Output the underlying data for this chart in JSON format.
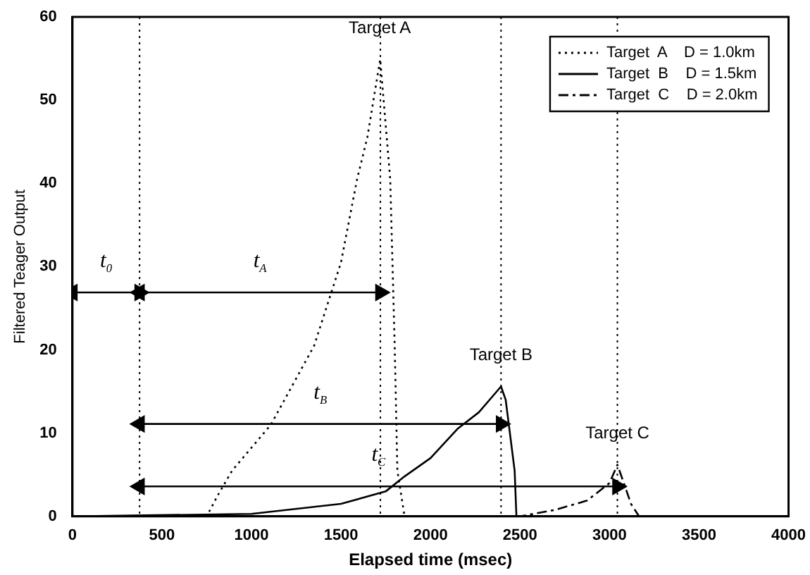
{
  "chart_data": {
    "type": "line",
    "xlabel": "Elapsed time (msec)",
    "ylabel": "Filtered Teager Output",
    "xlim": [
      0,
      4000
    ],
    "xticks": [
      0,
      500,
      1000,
      1500,
      2000,
      2500,
      3000,
      3500,
      4000
    ],
    "ylim": [
      0,
      60
    ],
    "yticks": [
      0,
      10,
      20,
      30,
      40,
      50,
      60
    ],
    "grid": false,
    "legend": "top right",
    "marker": "none",
    "series": [
      {
        "name": "Target  A    D = 1.0km",
        "color": "#000000",
        "line_style": "dotted",
        "x": [
          0,
          500,
          750,
          811,
          892,
          1108,
          1350,
          1500,
          1590,
          1647,
          1719,
          1775,
          1800,
          1815,
          1855,
          2000,
          4000
        ],
        "values": [
          0,
          0,
          0,
          2.5,
          5.5,
          11,
          20.5,
          30.5,
          40.5,
          45.5,
          54.9,
          40.5,
          20.5,
          5.5,
          0,
          0,
          0
        ]
      },
      {
        "name": "Target  B    D = 1.5km",
        "color": "#000000",
        "line_style": "solid",
        "x": [
          0,
          1000,
          1500,
          1750,
          1855,
          2000,
          2150,
          2270,
          2350,
          2394,
          2420,
          2470,
          2480,
          4000
        ],
        "values": [
          0,
          0.3,
          1.5,
          3,
          4.8,
          7,
          10.5,
          12.5,
          14.5,
          15.6,
          14,
          5.5,
          0,
          0
        ]
      },
      {
        "name": "Target  C    D = 2.0km",
        "color": "#000000",
        "line_style": "dashed",
        "x": [
          0,
          2500,
          2700,
          2875,
          3000,
          3044,
          3080,
          3120,
          3165,
          4000
        ],
        "values": [
          0,
          0,
          0.8,
          1.9,
          4,
          6.2,
          4,
          1.5,
          0,
          0
        ]
      },
      {
        "color": "#000000",
        "line_style": "solid",
        "marker": "triangle",
        "x": [
          0,
          375
        ],
        "values": [
          26.9,
          26.9
        ]
      },
      {
        "color": "#000000",
        "line_style": "solid",
        "marker": "triangle",
        "x": [
          375,
          1720
        ],
        "values": [
          26.9,
          26.9
        ]
      },
      {
        "color": "#000000",
        "line_style": "solid",
        "marker": "triangle",
        "x": [
          375,
          2394
        ],
        "values": [
          11.1,
          11.1
        ]
      },
      {
        "color": "#000000",
        "line_style": "solid",
        "marker": "triangle",
        "x": [
          375,
          3044
        ],
        "values": [
          3.6,
          3.6
        ]
      }
    ],
    "ref_lines": [
      {
        "axis": "x",
        "value": 375,
        "line_style": "dotted"
      },
      {
        "axis": "x",
        "value": 1720,
        "line_style": "dotted"
      },
      {
        "axis": "x",
        "value": 2394,
        "line_style": "dotted"
      },
      {
        "axis": "x",
        "value": 3044,
        "line_style": "dotted"
      }
    ],
    "annotations": [
      {
        "text": "t$_{0}$",
        "x": 187.5,
        "y": 26.9
      },
      {
        "text": "t$_{A}$",
        "x": 1047.5,
        "y": 26.9
      },
      {
        "text": "t$_{B}$",
        "x": 1384.5,
        "y": 11.1
      },
      {
        "text": "t$_{C}$",
        "x": 1709.5,
        "y": 3.6
      },
      {
        "text": "Target A",
        "x": 1719,
        "y": 54.9
      },
      {
        "text": "Target B",
        "x": 2394,
        "y": 15.6
      },
      {
        "text": "Target C",
        "x": 3044,
        "y": 6.2
      }
    ]
  }
}
